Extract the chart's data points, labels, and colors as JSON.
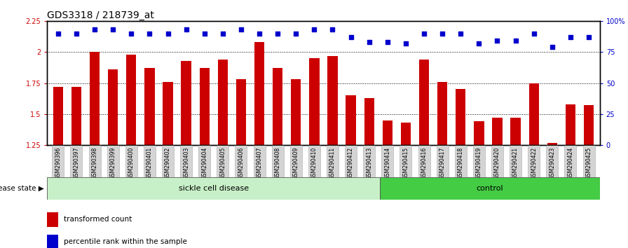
{
  "title": "GDS3318 / 218739_at",
  "samples": [
    "GSM290396",
    "GSM290397",
    "GSM290398",
    "GSM290399",
    "GSM290400",
    "GSM290401",
    "GSM290402",
    "GSM290403",
    "GSM290404",
    "GSM290405",
    "GSM290406",
    "GSM290407",
    "GSM290408",
    "GSM290409",
    "GSM290410",
    "GSM290411",
    "GSM290412",
    "GSM290413",
    "GSM290414",
    "GSM290415",
    "GSM290416",
    "GSM290417",
    "GSM290418",
    "GSM290419",
    "GSM290420",
    "GSM290421",
    "GSM290422",
    "GSM290423",
    "GSM290424",
    "GSM290425"
  ],
  "bar_values": [
    1.72,
    1.72,
    2.0,
    1.86,
    1.98,
    1.87,
    1.76,
    1.93,
    1.87,
    1.94,
    1.78,
    2.08,
    1.87,
    1.78,
    1.95,
    1.97,
    1.65,
    1.63,
    1.45,
    1.43,
    1.94,
    1.76,
    1.7,
    1.44,
    1.47,
    1.47,
    1.75,
    1.27,
    1.58,
    1.57
  ],
  "percentile_values": [
    90,
    90,
    93,
    93,
    90,
    90,
    90,
    93,
    90,
    90,
    93,
    90,
    90,
    90,
    93,
    93,
    87,
    83,
    83,
    82,
    90,
    90,
    90,
    82,
    84,
    84,
    90,
    79,
    87,
    87
  ],
  "sickle_count": 18,
  "control_count": 12,
  "bar_color": "#cc0000",
  "dot_color": "#0000cc",
  "sickle_color": "#c8f0c8",
  "control_color": "#44cc44",
  "ylim_left": [
    1.25,
    2.25
  ],
  "ylim_right": [
    0,
    100
  ],
  "yticks_left": [
    1.25,
    1.5,
    1.75,
    2.0,
    2.25
  ],
  "yticks_right": [
    0,
    25,
    50,
    75,
    100
  ],
  "ytick_labels_left": [
    "1.25",
    "1.5",
    "1.75",
    "2",
    "2.25"
  ],
  "ytick_labels_right": [
    "0",
    "25",
    "50",
    "75",
    "100%"
  ],
  "legend_items": [
    "transformed count",
    "percentile rank within the sample"
  ],
  "disease_state_label": "disease state",
  "sickle_label": "sickle cell disease",
  "control_label": "control",
  "background_color": "#ffffff",
  "title_fontsize": 10,
  "tick_fontsize": 7,
  "bar_width": 0.55,
  "dot_size": 15
}
